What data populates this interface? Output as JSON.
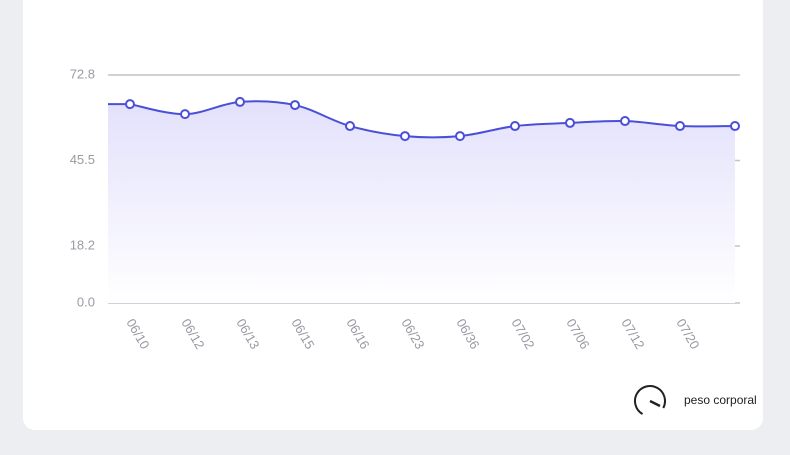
{
  "chart_data": {
    "type": "line",
    "categories": [
      "06/10",
      "06/12",
      "06/13",
      "06/15",
      "06/16",
      "06/23",
      "06/36",
      "07/02",
      "07/06",
      "07/12",
      "07/20",
      null
    ],
    "series": [
      {
        "name": "peso corporal",
        "color": "#4b4fd8",
        "values": [
          63.5,
          60.3,
          64.2,
          63.2,
          56.5,
          53.3,
          53.3,
          56.5,
          57.5,
          58.1,
          56.5,
          56.5
        ]
      }
    ],
    "ylim": [
      0,
      72.8
    ],
    "yticks": [
      {
        "value": 0,
        "label": "0.0"
      },
      18.2,
      45.5,
      72.8
    ],
    "grid": true,
    "legend": "bottom-right"
  }
}
